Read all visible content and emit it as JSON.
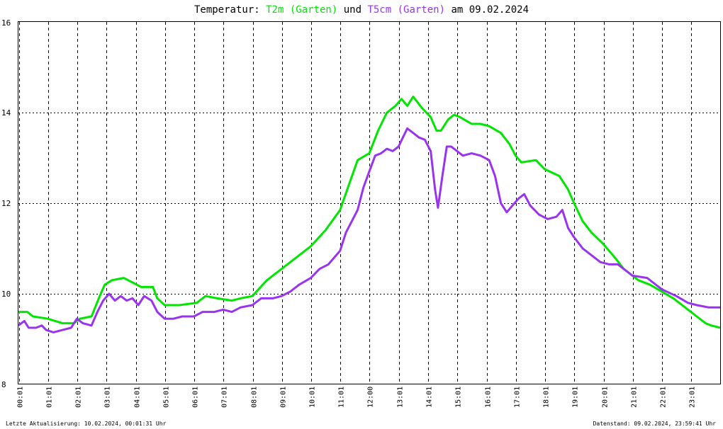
{
  "title": {
    "prefix": "Temperatur: ",
    "series1": "T2m (Garten)",
    "joiner": " und ",
    "series2": "T5cm (Garten)",
    "suffix": " am 09.02.2024"
  },
  "footer": {
    "left": "Letzte Aktualisierung: 10.02.2024, 00:01:31 Uhr",
    "right": "Datenstand: 09.02.2024, 23:59:41 Uhr"
  },
  "colors": {
    "t2m": "#00e600",
    "t5cm": "#9933ee",
    "grid": "#000000",
    "background": "#ffffff"
  },
  "chart_data": {
    "type": "line",
    "ylim": [
      8,
      16
    ],
    "yticks": [
      8,
      10,
      12,
      14,
      16
    ],
    "xlim": [
      0,
      24
    ],
    "xticks": [
      {
        "label": "00:01",
        "hour": 0.017
      },
      {
        "label": "01:01",
        "hour": 1.017
      },
      {
        "label": "02:01",
        "hour": 2.017
      },
      {
        "label": "03:01",
        "hour": 3.017
      },
      {
        "label": "04:01",
        "hour": 4.017
      },
      {
        "label": "05:01",
        "hour": 5.017
      },
      {
        "label": "06:01",
        "hour": 6.017
      },
      {
        "label": "07:01",
        "hour": 7.017
      },
      {
        "label": "08:01",
        "hour": 8.017
      },
      {
        "label": "09:01",
        "hour": 9.017
      },
      {
        "label": "10:01",
        "hour": 10.017
      },
      {
        "label": "11:01",
        "hour": 11.017
      },
      {
        "label": "12:00",
        "hour": 12.0
      },
      {
        "label": "13:01",
        "hour": 13.017
      },
      {
        "label": "14:01",
        "hour": 14.017
      },
      {
        "label": "15:01",
        "hour": 15.017
      },
      {
        "label": "16:01",
        "hour": 16.017
      },
      {
        "label": "17:01",
        "hour": 17.017
      },
      {
        "label": "18:01",
        "hour": 18.017
      },
      {
        "label": "19:01",
        "hour": 19.017
      },
      {
        "label": "20:01",
        "hour": 20.017
      },
      {
        "label": "21:01",
        "hour": 21.017
      },
      {
        "label": "22:01",
        "hour": 22.017
      },
      {
        "label": "23:01",
        "hour": 23.017
      }
    ],
    "grid": true,
    "series": [
      {
        "name": "T2m (Garten)",
        "color": "#00e600",
        "points": [
          [
            0.0,
            9.6
          ],
          [
            0.3,
            9.6
          ],
          [
            0.5,
            9.5
          ],
          [
            1.0,
            9.45
          ],
          [
            1.5,
            9.35
          ],
          [
            1.9,
            9.35
          ],
          [
            2.1,
            9.45
          ],
          [
            2.5,
            9.5
          ],
          [
            2.75,
            9.9
          ],
          [
            2.95,
            10.2
          ],
          [
            3.2,
            10.3
          ],
          [
            3.6,
            10.35
          ],
          [
            3.9,
            10.25
          ],
          [
            4.2,
            10.15
          ],
          [
            4.6,
            10.15
          ],
          [
            4.75,
            9.9
          ],
          [
            5.0,
            9.75
          ],
          [
            5.5,
            9.75
          ],
          [
            6.1,
            9.8
          ],
          [
            6.4,
            9.95
          ],
          [
            6.8,
            9.9
          ],
          [
            7.3,
            9.85
          ],
          [
            7.6,
            9.9
          ],
          [
            8.0,
            9.95
          ],
          [
            8.5,
            10.3
          ],
          [
            9.0,
            10.55
          ],
          [
            9.5,
            10.8
          ],
          [
            10.0,
            11.05
          ],
          [
            10.5,
            11.4
          ],
          [
            11.0,
            11.85
          ],
          [
            11.3,
            12.4
          ],
          [
            11.6,
            12.95
          ],
          [
            12.0,
            13.1
          ],
          [
            12.3,
            13.6
          ],
          [
            12.6,
            14.0
          ],
          [
            12.9,
            14.15
          ],
          [
            13.1,
            14.3
          ],
          [
            13.3,
            14.15
          ],
          [
            13.5,
            14.35
          ],
          [
            13.8,
            14.1
          ],
          [
            14.1,
            13.9
          ],
          [
            14.3,
            13.6
          ],
          [
            14.45,
            13.6
          ],
          [
            14.7,
            13.85
          ],
          [
            14.9,
            13.95
          ],
          [
            15.1,
            13.9
          ],
          [
            15.5,
            13.75
          ],
          [
            15.8,
            13.75
          ],
          [
            16.1,
            13.7
          ],
          [
            16.5,
            13.55
          ],
          [
            16.8,
            13.3
          ],
          [
            17.0,
            13.05
          ],
          [
            17.2,
            12.9
          ],
          [
            17.7,
            12.95
          ],
          [
            18.0,
            12.75
          ],
          [
            18.5,
            12.6
          ],
          [
            18.8,
            12.3
          ],
          [
            19.0,
            12.0
          ],
          [
            19.3,
            11.6
          ],
          [
            19.6,
            11.35
          ],
          [
            20.0,
            11.1
          ],
          [
            20.4,
            10.8
          ],
          [
            20.7,
            10.55
          ],
          [
            21.0,
            10.4
          ],
          [
            21.2,
            10.3
          ],
          [
            21.6,
            10.2
          ],
          [
            22.0,
            10.05
          ],
          [
            22.4,
            9.9
          ],
          [
            22.8,
            9.7
          ],
          [
            23.2,
            9.5
          ],
          [
            23.5,
            9.35
          ],
          [
            23.7,
            9.3
          ],
          [
            24.0,
            9.25
          ]
        ]
      },
      {
        "name": "T5cm (Garten)",
        "color": "#9933ee",
        "points": [
          [
            0.0,
            9.3
          ],
          [
            0.2,
            9.4
          ],
          [
            0.35,
            9.25
          ],
          [
            0.6,
            9.25
          ],
          [
            0.8,
            9.3
          ],
          [
            0.95,
            9.2
          ],
          [
            1.2,
            9.15
          ],
          [
            1.5,
            9.2
          ],
          [
            1.8,
            9.25
          ],
          [
            2.0,
            9.45
          ],
          [
            2.2,
            9.35
          ],
          [
            2.5,
            9.3
          ],
          [
            2.7,
            9.6
          ],
          [
            2.9,
            9.85
          ],
          [
            3.1,
            10.0
          ],
          [
            3.3,
            9.85
          ],
          [
            3.5,
            9.95
          ],
          [
            3.7,
            9.85
          ],
          [
            3.9,
            9.9
          ],
          [
            4.1,
            9.75
          ],
          [
            4.3,
            9.95
          ],
          [
            4.55,
            9.85
          ],
          [
            4.75,
            9.6
          ],
          [
            5.0,
            9.45
          ],
          [
            5.3,
            9.45
          ],
          [
            5.6,
            9.5
          ],
          [
            6.0,
            9.5
          ],
          [
            6.3,
            9.6
          ],
          [
            6.7,
            9.6
          ],
          [
            7.0,
            9.65
          ],
          [
            7.3,
            9.6
          ],
          [
            7.6,
            9.7
          ],
          [
            8.0,
            9.75
          ],
          [
            8.3,
            9.9
          ],
          [
            8.7,
            9.9
          ],
          [
            9.0,
            9.95
          ],
          [
            9.3,
            10.05
          ],
          [
            9.6,
            10.2
          ],
          [
            10.0,
            10.35
          ],
          [
            10.3,
            10.55
          ],
          [
            10.6,
            10.65
          ],
          [
            11.0,
            10.95
          ],
          [
            11.2,
            11.35
          ],
          [
            11.4,
            11.6
          ],
          [
            11.6,
            11.85
          ],
          [
            11.8,
            12.35
          ],
          [
            12.0,
            12.7
          ],
          [
            12.2,
            13.05
          ],
          [
            12.4,
            13.1
          ],
          [
            12.6,
            13.2
          ],
          [
            12.8,
            13.15
          ],
          [
            13.0,
            13.25
          ],
          [
            13.15,
            13.45
          ],
          [
            13.3,
            13.65
          ],
          [
            13.5,
            13.55
          ],
          [
            13.7,
            13.45
          ],
          [
            13.9,
            13.4
          ],
          [
            14.1,
            13.15
          ],
          [
            14.25,
            12.3
          ],
          [
            14.35,
            11.9
          ],
          [
            14.5,
            12.6
          ],
          [
            14.65,
            13.25
          ],
          [
            14.8,
            13.25
          ],
          [
            15.0,
            13.15
          ],
          [
            15.2,
            13.05
          ],
          [
            15.5,
            13.1
          ],
          [
            15.8,
            13.05
          ],
          [
            16.1,
            12.95
          ],
          [
            16.3,
            12.6
          ],
          [
            16.5,
            12.0
          ],
          [
            16.7,
            11.8
          ],
          [
            16.9,
            11.95
          ],
          [
            17.1,
            12.1
          ],
          [
            17.3,
            12.2
          ],
          [
            17.5,
            11.95
          ],
          [
            17.8,
            11.75
          ],
          [
            18.1,
            11.65
          ],
          [
            18.4,
            11.7
          ],
          [
            18.6,
            11.85
          ],
          [
            18.8,
            11.45
          ],
          [
            19.0,
            11.25
          ],
          [
            19.3,
            11.0
          ],
          [
            19.6,
            10.85
          ],
          [
            19.9,
            10.7
          ],
          [
            20.2,
            10.65
          ],
          [
            20.5,
            10.65
          ],
          [
            20.8,
            10.5
          ],
          [
            21.0,
            10.4
          ],
          [
            21.5,
            10.35
          ],
          [
            22.0,
            10.1
          ],
          [
            22.5,
            9.95
          ],
          [
            22.9,
            9.8
          ],
          [
            23.2,
            9.75
          ],
          [
            23.6,
            9.7
          ],
          [
            24.0,
            9.7
          ]
        ]
      }
    ]
  }
}
